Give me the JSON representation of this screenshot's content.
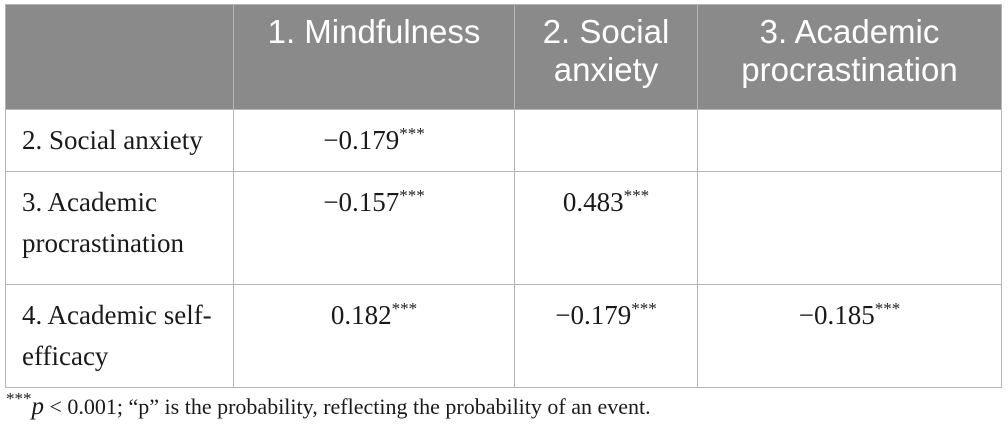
{
  "table": {
    "columns": [
      "",
      "1. Mindfulness",
      "2. Social anxiety",
      "3. Academic procrastination"
    ],
    "rows": [
      {
        "label": "2. Social anxiety",
        "cells": [
          {
            "value": "−0.179",
            "sig": "***"
          },
          {
            "value": "",
            "sig": ""
          },
          {
            "value": "",
            "sig": ""
          }
        ]
      },
      {
        "label": "3. Academic procrastination",
        "cells": [
          {
            "value": "−0.157",
            "sig": "***"
          },
          {
            "value": "0.483",
            "sig": "***"
          },
          {
            "value": "",
            "sig": ""
          }
        ]
      },
      {
        "label": "4. Academic self-efficacy",
        "cells": [
          {
            "value": "0.182",
            "sig": "***"
          },
          {
            "value": "−0.179",
            "sig": "***"
          },
          {
            "value": "−0.185",
            "sig": "***"
          }
        ]
      }
    ]
  },
  "footnote": {
    "marker": "***",
    "variable": "p",
    "text": " < 0.001; “p” is the probability, reflecting the probability of an event."
  }
}
